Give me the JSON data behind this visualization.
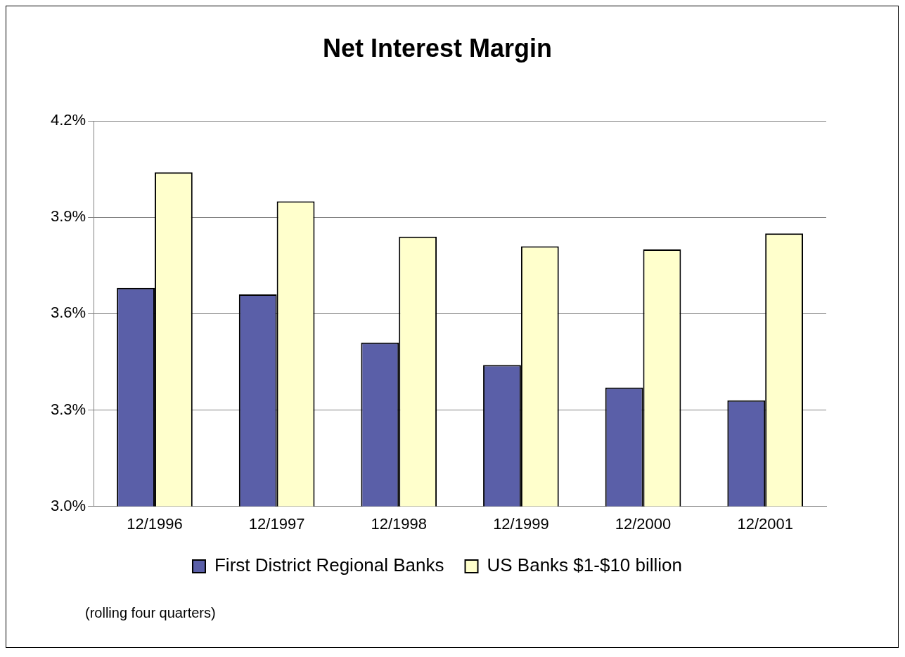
{
  "chart_data": {
    "type": "bar",
    "title": "Net Interest Margin",
    "categories": [
      "12/1996",
      "12/1997",
      "12/1998",
      "12/1999",
      "12/2000",
      "12/2001"
    ],
    "series": [
      {
        "name": "First District Regional Banks",
        "color": "#5a5fa8",
        "values": [
          3.68,
          3.66,
          3.51,
          3.44,
          3.37,
          3.33
        ]
      },
      {
        "name": "US Banks $1-$10 billion",
        "color": "#ffffcc",
        "values": [
          4.04,
          3.95,
          3.84,
          3.81,
          3.8,
          3.85
        ]
      }
    ],
    "ylim": [
      3.0,
      4.2
    ],
    "yticks": [
      {
        "value": 3.0,
        "label": "3.0%"
      },
      {
        "value": 3.3,
        "label": "3.3%"
      },
      {
        "value": 3.6,
        "label": "3.6%"
      },
      {
        "value": 3.9,
        "label": "3.9%"
      },
      {
        "value": 4.2,
        "label": "4.2%"
      }
    ],
    "grid": "y",
    "legend": "bottom",
    "annotations": [
      "(rolling four quarters)"
    ]
  }
}
